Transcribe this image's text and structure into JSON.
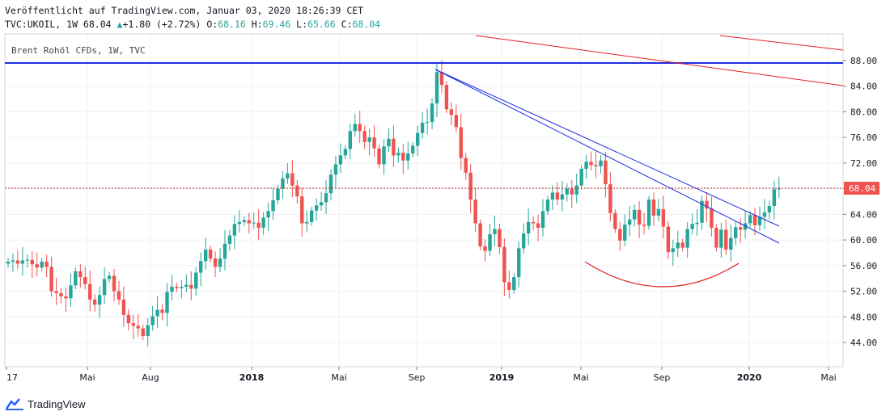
{
  "header": {
    "published": "Veröffentlicht auf TradingView.com, Januar 03, 2020 18:26:39 CET",
    "symbol": "TVC:UKOIL, 1W 68.04",
    "change": "+1.80 (+2.72%)",
    "o_label": "O:",
    "o": "68.16",
    "h_label": "H:",
    "h": "69.46",
    "l_label": "L:",
    "l": "65.66",
    "c_label": "C:",
    "c": "68.04"
  },
  "series_label": "Brent Rohöl CFDs, 1W, TVC",
  "brand": "TradingView",
  "colors": {
    "up": "#26a69a",
    "down": "#ef5350",
    "trend_blue": "#1c2ee0",
    "trend_red": "#e02020",
    "price_line": "#c62828"
  },
  "chart_data": {
    "type": "candlestick",
    "title": "Brent Rohöl CFDs, 1W, TVC",
    "interval": "1W",
    "ylim": [
      40.5,
      92.5
    ],
    "y_ticks": [
      "44.00",
      "48.00",
      "52.00",
      "56.00",
      "60.00",
      "64.00",
      "68.00",
      "72.00",
      "76.00",
      "80.00",
      "84.00",
      "88.00"
    ],
    "x_ticks": [
      {
        "label": "17",
        "year": false
      },
      {
        "label": "Mai",
        "year": false
      },
      {
        "label": "Aug",
        "year": false
      },
      {
        "label": "2018",
        "year": true
      },
      {
        "label": "Mai",
        "year": false
      },
      {
        "label": "Sep",
        "year": false
      },
      {
        "label": "2019",
        "year": true
      },
      {
        "label": "Mai",
        "year": false
      },
      {
        "label": "Sep",
        "year": false
      },
      {
        "label": "2020",
        "year": true
      },
      {
        "label": "Mai",
        "year": false
      }
    ],
    "last_price": "68.04",
    "closes": [
      56.6,
      56.8,
      56.3,
      56.8,
      56.9,
      56.2,
      55.7,
      56.6,
      55.8,
      52.0,
      51.7,
      51.2,
      50.9,
      52.9,
      55.1,
      54.2,
      53.1,
      50.7,
      49.9,
      51.4,
      53.9,
      54.4,
      52.0,
      50.7,
      48.3,
      47.0,
      46.6,
      46.2,
      45.0,
      46.7,
      48.1,
      49.1,
      48.6,
      51.9,
      52.7,
      52.5,
      52.7,
      53.0,
      52.4,
      54.9,
      56.7,
      58.5,
      57.1,
      55.8,
      57.1,
      59.4,
      60.7,
      62.5,
      62.8,
      63.1,
      62.6,
      62.7,
      61.9,
      63.5,
      64.5,
      66.2,
      68.0,
      69.6,
      70.4,
      68.5,
      66.8,
      62.6,
      62.8,
      64.6,
      65.4,
      65.9,
      67.3,
      70.2,
      71.8,
      73.2,
      74.2,
      77.0,
      78.1,
      77.0,
      75.3,
      76.0,
      74.3,
      71.8,
      74.6,
      75.8,
      73.2,
      73.6,
      72.4,
      73.5,
      74.7,
      76.7,
      78.3,
      78.4,
      81.3,
      86.2,
      84.2,
      80.4,
      79.5,
      77.6,
      72.8,
      70.5,
      66.3,
      62.6,
      59.0,
      58.3,
      60.9,
      61.7,
      58.9,
      53.4,
      52.2,
      54.2,
      58.7,
      61.0,
      62.8,
      62.6,
      61.9,
      64.5,
      66.3,
      67.4,
      66.3,
      67.1,
      68.0,
      67.1,
      68.5,
      71.1,
      72.2,
      71.7,
      71.5,
      72.4,
      68.7,
      64.2,
      61.7,
      59.9,
      62.4,
      63.2,
      64.7,
      62.4,
      62.2,
      66.3,
      63.8,
      64.8,
      62.1,
      58.1,
      58.7,
      59.6,
      58.8,
      61.7,
      62.5,
      62.7,
      66.1,
      64.9,
      61.9,
      58.8,
      61.6,
      58.5,
      60.3,
      62.0,
      61.6,
      62.6,
      63.9,
      62.3,
      63.6,
      64.3,
      65.3,
      67.9,
      68.04
    ]
  }
}
